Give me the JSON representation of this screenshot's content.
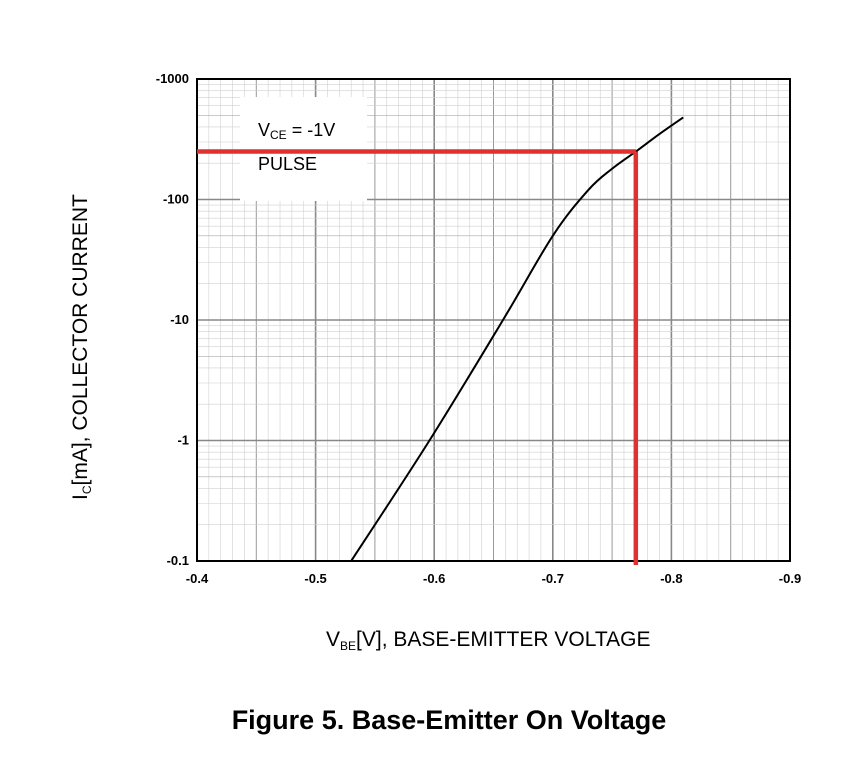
{
  "caption": "Figure 5. Base-Emitter On Voltage",
  "chart_data": {
    "type": "line",
    "title": "Figure 5. Base-Emitter On Voltage",
    "xlabel": {
      "main": "V",
      "sub": "BE",
      "rest": "[V], BASE-EMITTER VOLTAGE"
    },
    "ylabel": {
      "main": "I",
      "sub": "C",
      "rest": "[mA], COLLECTOR CURRENT"
    },
    "xlim": [
      -0.4,
      -0.9
    ],
    "ylim": [
      -0.1,
      -1000
    ],
    "yscale": "log",
    "grid": true,
    "x_ticks": [
      "-0.4",
      "-0.5",
      "-0.6",
      "-0.7",
      "-0.8",
      "-0.9"
    ],
    "y_ticks": [
      "-0.1",
      "-1",
      "-10",
      "-100",
      "-1000"
    ],
    "annotation": {
      "line1_main": "V",
      "line1_sub": "CE",
      "line1_rest": " = -1V",
      "line2": "PULSE"
    },
    "series": [
      {
        "x": [
          -0.53,
          -0.596,
          -0.658,
          -0.7,
          -0.73,
          -0.75,
          -0.77,
          -0.79,
          -0.81
        ],
        "y": [
          -0.1,
          -1,
          -10,
          -50,
          -120,
          -180,
          -250,
          -350,
          -480
        ]
      }
    ],
    "marker_lines": {
      "x": -0.77,
      "y": -250,
      "color": "#e03030"
    }
  }
}
